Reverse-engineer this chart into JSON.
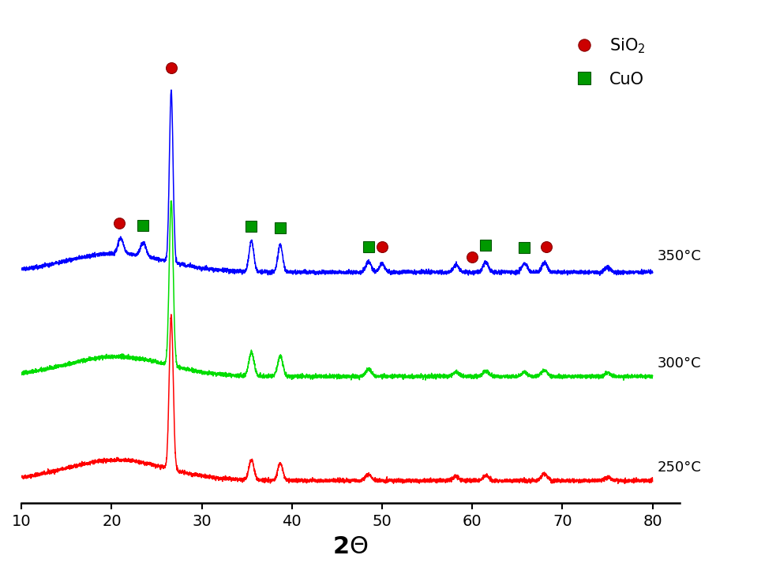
{
  "xlabel": "2θ",
  "xlim": [
    10,
    80
  ],
  "x_ticks": [
    10,
    20,
    30,
    40,
    50,
    60,
    70,
    80
  ],
  "colors": {
    "250C": "#ff0000",
    "300C": "#00dd00",
    "350C": "#0000ff"
  },
  "labels": {
    "250C": "250°C",
    "300C": "300°C",
    "350C": "350°C"
  },
  "offsets": {
    "250C": 0.0,
    "300C": 1.6,
    "350C": 3.2
  },
  "legend_sio2_color": "#cc0000",
  "legend_cuo_color": "#009900",
  "background_color": "#ffffff",
  "noise_seed": 42,
  "figure_width": 9.64,
  "figure_height": 7.23
}
